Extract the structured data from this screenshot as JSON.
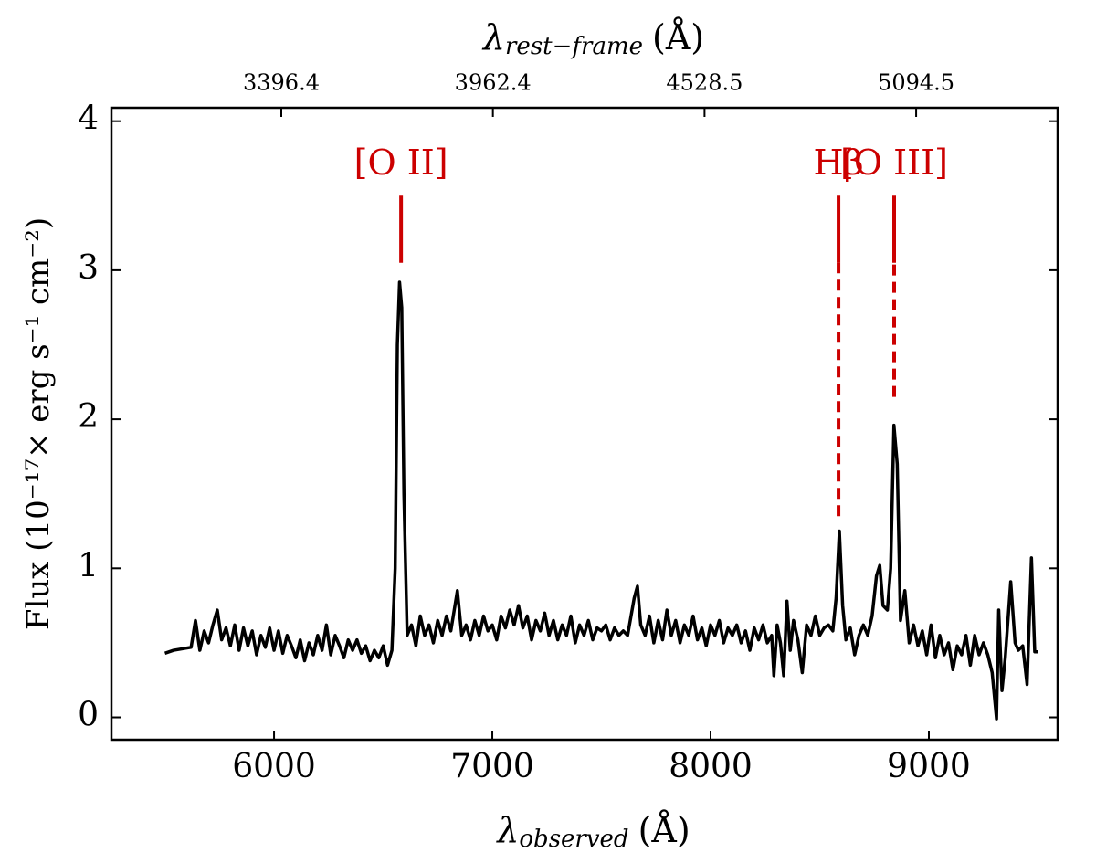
{
  "chart_data": {
    "type": "line",
    "x_label": {
      "symbol": "λ",
      "subscript": "observed",
      "unit": "(Å)"
    },
    "x2_label": {
      "symbol": "λ",
      "subscript": "rest−frame",
      "unit": "(Å)"
    },
    "y_label": "Flux (10⁻¹⁷× erg s⁻¹ cm⁻²)",
    "color": "#000000",
    "xlim": [
      5255,
      9590
    ],
    "xticks": [
      6000,
      7000,
      8000,
      9000
    ],
    "x2lim": [
      2942,
      5473
    ],
    "x2ticks": [
      3396.4,
      3962.4,
      4528.5,
      5094.5
    ],
    "ylim": [
      -0.15,
      4.09
    ],
    "yticks": [
      0,
      1,
      2,
      3,
      4
    ],
    "x": [
      5500,
      5540,
      5580,
      5620,
      5640,
      5660,
      5680,
      5700,
      5720,
      5740,
      5760,
      5780,
      5800,
      5820,
      5840,
      5860,
      5880,
      5900,
      5920,
      5940,
      5960,
      5980,
      6000,
      6020,
      6040,
      6060,
      6080,
      6100,
      6120,
      6140,
      6160,
      6180,
      6200,
      6220,
      6240,
      6260,
      6280,
      6300,
      6320,
      6340,
      6360,
      6380,
      6400,
      6420,
      6440,
      6460,
      6480,
      6500,
      6520,
      6540,
      6555,
      6565,
      6575,
      6585,
      6595,
      6610,
      6630,
      6650,
      6670,
      6690,
      6710,
      6730,
      6750,
      6770,
      6790,
      6810,
      6840,
      6860,
      6880,
      6900,
      6920,
      6940,
      6960,
      6980,
      7000,
      7020,
      7040,
      7060,
      7080,
      7100,
      7120,
      7140,
      7160,
      7180,
      7200,
      7220,
      7240,
      7260,
      7280,
      7300,
      7320,
      7340,
      7360,
      7380,
      7400,
      7420,
      7440,
      7460,
      7480,
      7500,
      7520,
      7540,
      7560,
      7580,
      7600,
      7620,
      7650,
      7665,
      7680,
      7700,
      7720,
      7740,
      7760,
      7780,
      7800,
      7820,
      7840,
      7860,
      7880,
      7900,
      7920,
      7940,
      7960,
      7980,
      8000,
      8020,
      8040,
      8060,
      8080,
      8100,
      8120,
      8140,
      8160,
      8180,
      8200,
      8220,
      8240,
      8260,
      8280,
      8290,
      8305,
      8320,
      8335,
      8350,
      8365,
      8380,
      8400,
      8420,
      8440,
      8460,
      8480,
      8500,
      8520,
      8540,
      8560,
      8575,
      8590,
      8605,
      8620,
      8640,
      8660,
      8680,
      8700,
      8720,
      8740,
      8760,
      8775,
      8790,
      8810,
      8825,
      8840,
      8855,
      8870,
      8890,
      8910,
      8930,
      8950,
      8970,
      8990,
      9010,
      9030,
      9050,
      9070,
      9090,
      9110,
      9130,
      9150,
      9170,
      9190,
      9210,
      9230,
      9250,
      9270,
      9290,
      9310,
      9320,
      9335,
      9350,
      9375,
      9395,
      9410,
      9430,
      9450,
      9470,
      9485,
      9500
    ],
    "values": [
      0.43,
      0.45,
      0.46,
      0.47,
      0.65,
      0.45,
      0.58,
      0.5,
      0.62,
      0.72,
      0.52,
      0.6,
      0.48,
      0.62,
      0.45,
      0.6,
      0.48,
      0.58,
      0.42,
      0.55,
      0.47,
      0.6,
      0.45,
      0.58,
      0.43,
      0.55,
      0.48,
      0.4,
      0.52,
      0.38,
      0.5,
      0.42,
      0.55,
      0.45,
      0.62,
      0.42,
      0.55,
      0.48,
      0.4,
      0.52,
      0.45,
      0.52,
      0.43,
      0.48,
      0.38,
      0.45,
      0.4,
      0.48,
      0.35,
      0.45,
      1.0,
      2.5,
      2.92,
      2.75,
      1.5,
      0.55,
      0.62,
      0.48,
      0.68,
      0.55,
      0.62,
      0.5,
      0.65,
      0.55,
      0.68,
      0.58,
      0.85,
      0.55,
      0.62,
      0.52,
      0.65,
      0.55,
      0.68,
      0.58,
      0.62,
      0.52,
      0.68,
      0.6,
      0.72,
      0.62,
      0.75,
      0.6,
      0.68,
      0.52,
      0.65,
      0.58,
      0.7,
      0.55,
      0.65,
      0.52,
      0.62,
      0.55,
      0.68,
      0.5,
      0.62,
      0.55,
      0.65,
      0.52,
      0.6,
      0.58,
      0.62,
      0.52,
      0.6,
      0.55,
      0.58,
      0.55,
      0.8,
      0.88,
      0.62,
      0.55,
      0.68,
      0.5,
      0.65,
      0.52,
      0.72,
      0.55,
      0.65,
      0.5,
      0.62,
      0.55,
      0.68,
      0.52,
      0.6,
      0.48,
      0.62,
      0.55,
      0.65,
      0.5,
      0.6,
      0.55,
      0.62,
      0.5,
      0.58,
      0.45,
      0.6,
      0.52,
      0.62,
      0.5,
      0.55,
      0.28,
      0.62,
      0.5,
      0.28,
      0.78,
      0.45,
      0.65,
      0.52,
      0.3,
      0.62,
      0.55,
      0.68,
      0.55,
      0.6,
      0.62,
      0.58,
      0.8,
      1.25,
      0.75,
      0.52,
      0.6,
      0.42,
      0.55,
      0.62,
      0.55,
      0.68,
      0.95,
      1.02,
      0.75,
      0.72,
      1.0,
      1.96,
      1.7,
      0.65,
      0.85,
      0.5,
      0.62,
      0.48,
      0.58,
      0.42,
      0.62,
      0.4,
      0.55,
      0.42,
      0.5,
      0.32,
      0.48,
      0.42,
      0.55,
      0.35,
      0.55,
      0.42,
      0.5,
      0.42,
      0.3,
      -0.01,
      0.72,
      0.18,
      0.4,
      0.91,
      0.5,
      0.45,
      0.48,
      0.22,
      1.07,
      0.44,
      0.44
    ],
    "annotation_color": "#cc0000",
    "annotations": [
      {
        "label": "[O II]",
        "x": 6582,
        "label_y": 3.7,
        "segments": [
          {
            "style": "solid",
            "y": [
              3.05,
              3.5
            ]
          }
        ]
      },
      {
        "label": "Hβ",
        "x": 8586,
        "label_y": 3.7,
        "segments": [
          {
            "style": "solid",
            "y": [
              3.05,
              3.5
            ]
          },
          {
            "style": "dashed",
            "y": [
              1.35,
              3.05
            ]
          }
        ]
      },
      {
        "label": "[O III]",
        "x": 8841,
        "label_y": 3.7,
        "segments": [
          {
            "style": "solid",
            "y": [
              3.05,
              3.5
            ]
          },
          {
            "style": "dashed",
            "y": [
              2.15,
              3.05
            ]
          }
        ]
      }
    ]
  }
}
